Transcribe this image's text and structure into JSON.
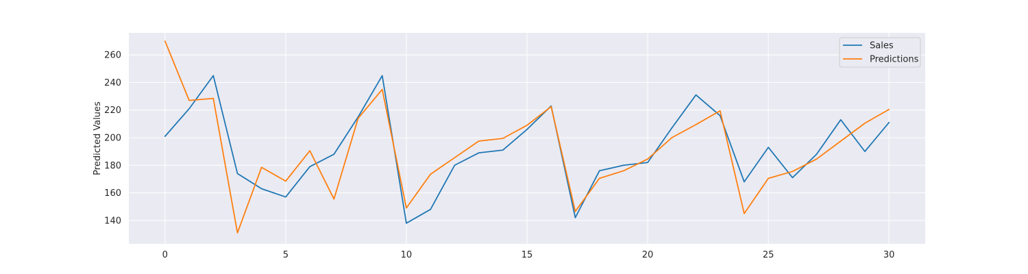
{
  "chart_data": {
    "type": "line",
    "title": "",
    "xlabel": "",
    "ylabel": "Predicted Values",
    "xlim": [
      -1.5,
      31.5
    ],
    "ylim": [
      123,
      276
    ],
    "x_ticks": [
      0,
      5,
      10,
      15,
      20,
      25,
      30
    ],
    "y_ticks": [
      140,
      160,
      180,
      200,
      220,
      240,
      260
    ],
    "grid": true,
    "legend_position": "top-right",
    "x": [
      0,
      1,
      2,
      3,
      4,
      5,
      6,
      7,
      8,
      9,
      10,
      11,
      12,
      13,
      14,
      15,
      16,
      17,
      18,
      19,
      20,
      21,
      22,
      23,
      24,
      25,
      26,
      27,
      28,
      29,
      30
    ],
    "series": [
      {
        "name": "Sales",
        "color": "#1f77b4",
        "values": [
          201,
          221,
          245,
          174,
          163,
          157,
          179,
          188,
          215,
          245,
          138,
          148,
          180,
          189,
          191,
          206,
          223,
          142,
          176,
          180,
          182,
          207,
          231,
          216,
          168,
          193,
          171,
          188,
          213,
          190,
          211
        ]
      },
      {
        "name": "Predictions",
        "color": "#ff7f0e",
        "values": [
          270,
          227,
          228.5,
          131,
          178.5,
          168.5,
          190.5,
          155.5,
          214,
          235,
          149,
          173.5,
          185.5,
          197.5,
          199.5,
          209,
          222.5,
          146.5,
          170.5,
          176,
          184.5,
          200,
          209.5,
          219.5,
          145,
          170.5,
          175.5,
          184.5,
          197.5,
          210.5,
          220.5
        ]
      }
    ]
  }
}
